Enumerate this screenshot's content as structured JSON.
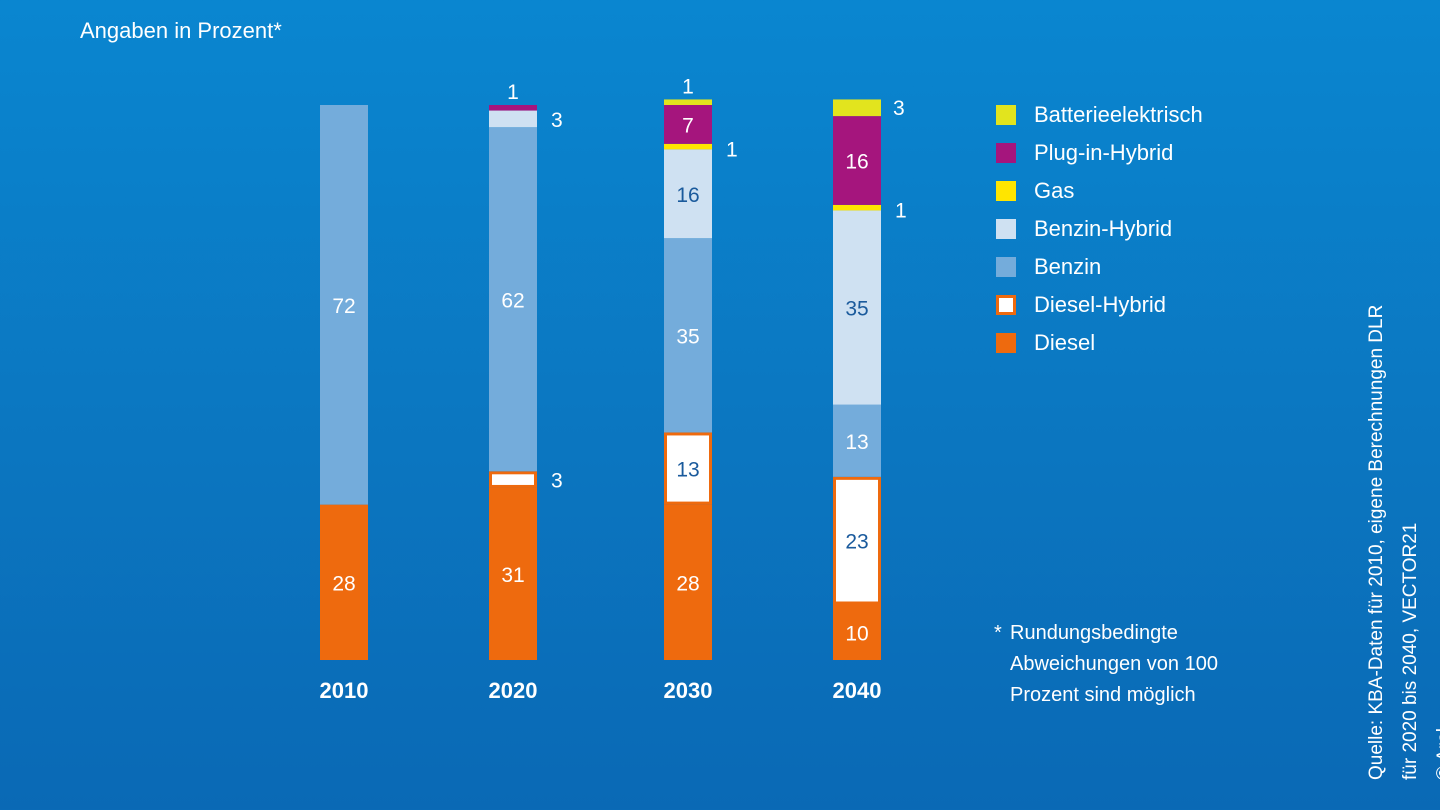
{
  "subtitle": "Angaben in Prozent*",
  "footnote": {
    "star": "*",
    "text": "Rundungsbedingte Abweichungen von 100 Prozent sind möglich"
  },
  "source": {
    "line1": "Quelle: KBA-Daten für 2010, eigene Berechnungen DLR",
    "line2": "für 2020 bis 2040, VECTOR21",
    "copyright": "© Aral"
  },
  "colors": {
    "Batterieelektrisch": "#e2e41e",
    "Plug-in-Hybrid": "#a5157d",
    "Gas": "#ffe500",
    "Benzin-Hybrid": "#cfe1f2",
    "Benzin": "#74acdb",
    "Diesel-Hybrid": "#ffffff",
    "Diesel": "#ee6a0e",
    "outline": "#ee6a0e",
    "darkText": "#1a5a9c"
  },
  "chart_data": {
    "type": "bar",
    "stacked": true,
    "unit": "Prozent",
    "categories": [
      "2010",
      "2020",
      "2030",
      "2040"
    ],
    "series": [
      {
        "name": "Diesel",
        "values": [
          28,
          31,
          28,
          10
        ]
      },
      {
        "name": "Diesel-Hybrid",
        "values": [
          0,
          3,
          13,
          23
        ]
      },
      {
        "name": "Benzin",
        "values": [
          72,
          62,
          35,
          13
        ]
      },
      {
        "name": "Benzin-Hybrid",
        "values": [
          0,
          3,
          16,
          35
        ]
      },
      {
        "name": "Gas",
        "values": [
          0,
          0,
          1,
          1
        ]
      },
      {
        "name": "Plug-in-Hybrid",
        "values": [
          0,
          1,
          7,
          16
        ]
      },
      {
        "name": "Batterieelektrisch",
        "values": [
          0,
          0,
          1,
          3
        ]
      }
    ],
    "legend": [
      "Batterieelektrisch",
      "Plug-in-Hybrid",
      "Gas",
      "Benzin-Hybrid",
      "Benzin",
      "Diesel-Hybrid",
      "Diesel"
    ],
    "legend_position": "right",
    "ylim": [
      0,
      100
    ],
    "axes_visible": false,
    "grid": false
  }
}
